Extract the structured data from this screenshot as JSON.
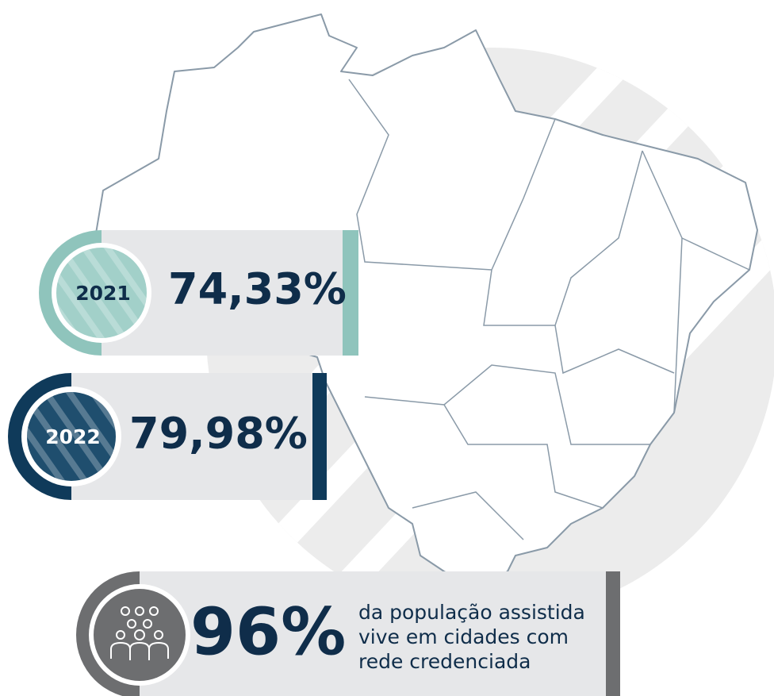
{
  "items": [
    {
      "year": "2021",
      "value": "74,33%"
    },
    {
      "year": "2022",
      "value": "79,98%"
    }
  ],
  "highlight": {
    "value": "96%",
    "description": [
      "da população assistida",
      "vive em cidades com",
      "rede credenciada"
    ]
  }
}
